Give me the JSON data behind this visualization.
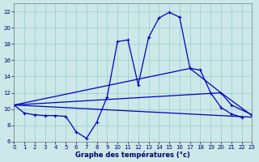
{
  "background_color": "#cce8e8",
  "grid_color": "#99cccc",
  "line_color": "#0000bb",
  "xlabel": "Graphe des températures (°c)",
  "xlim": [
    0,
    23
  ],
  "ylim": [
    6,
    23
  ],
  "xticks": [
    0,
    1,
    2,
    3,
    4,
    5,
    6,
    7,
    8,
    9,
    10,
    11,
    12,
    13,
    14,
    15,
    16,
    17,
    18,
    19,
    20,
    21,
    22,
    23
  ],
  "yticks": [
    6,
    8,
    10,
    12,
    14,
    16,
    18,
    20,
    22
  ],
  "line1_x": [
    0,
    1,
    2,
    3,
    4,
    5,
    6,
    7,
    8,
    9,
    10,
    11,
    12,
    13,
    14,
    15,
    16,
    17,
    18,
    19,
    20,
    21,
    22
  ],
  "line1_y": [
    10.5,
    9.5,
    9.3,
    9.2,
    9.2,
    9.1,
    7.2,
    6.4,
    8.4,
    11.5,
    18.3,
    18.5,
    13.0,
    18.8,
    21.2,
    21.9,
    21.3,
    15.0,
    14.8,
    12.0,
    10.2,
    9.4,
    9.0
  ],
  "line2_x": [
    0,
    17,
    20,
    21,
    23
  ],
  "line2_y": [
    10.5,
    15.0,
    12.0,
    10.5,
    9.3
  ],
  "line3_x": [
    0,
    20,
    23
  ],
  "line3_y": [
    10.5,
    12.0,
    9.2
  ],
  "line4_x": [
    0,
    23
  ],
  "line4_y": [
    10.5,
    9.0
  ],
  "xlabel_fontsize": 6,
  "xlabel_bold": true,
  "tick_fontsize": 5,
  "tick_color": "#000066"
}
